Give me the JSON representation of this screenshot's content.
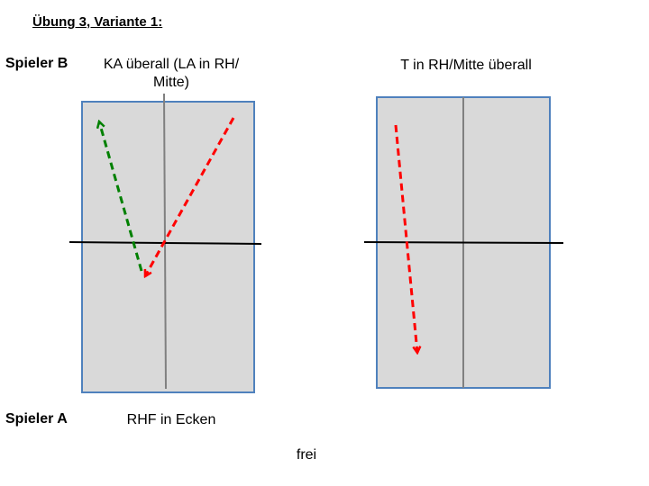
{
  "title": "Übung 3, Variante 1:",
  "players": {
    "top": "Spieler B",
    "bottom": "Spieler A"
  },
  "left_table": {
    "top_caption": "KA überall (LA in RH/ Mitte)",
    "bottom_caption": "RHF in Ecken"
  },
  "right_table": {
    "top_caption": "T in RH/Mitte überall"
  },
  "footer": "frei",
  "colors": {
    "table_fill": "#d9d9d9",
    "table_border": "#4f81bd",
    "center_line": "#808080",
    "net": "#000000",
    "arrow_red": "#ff0000",
    "arrow_green": "#008000"
  }
}
